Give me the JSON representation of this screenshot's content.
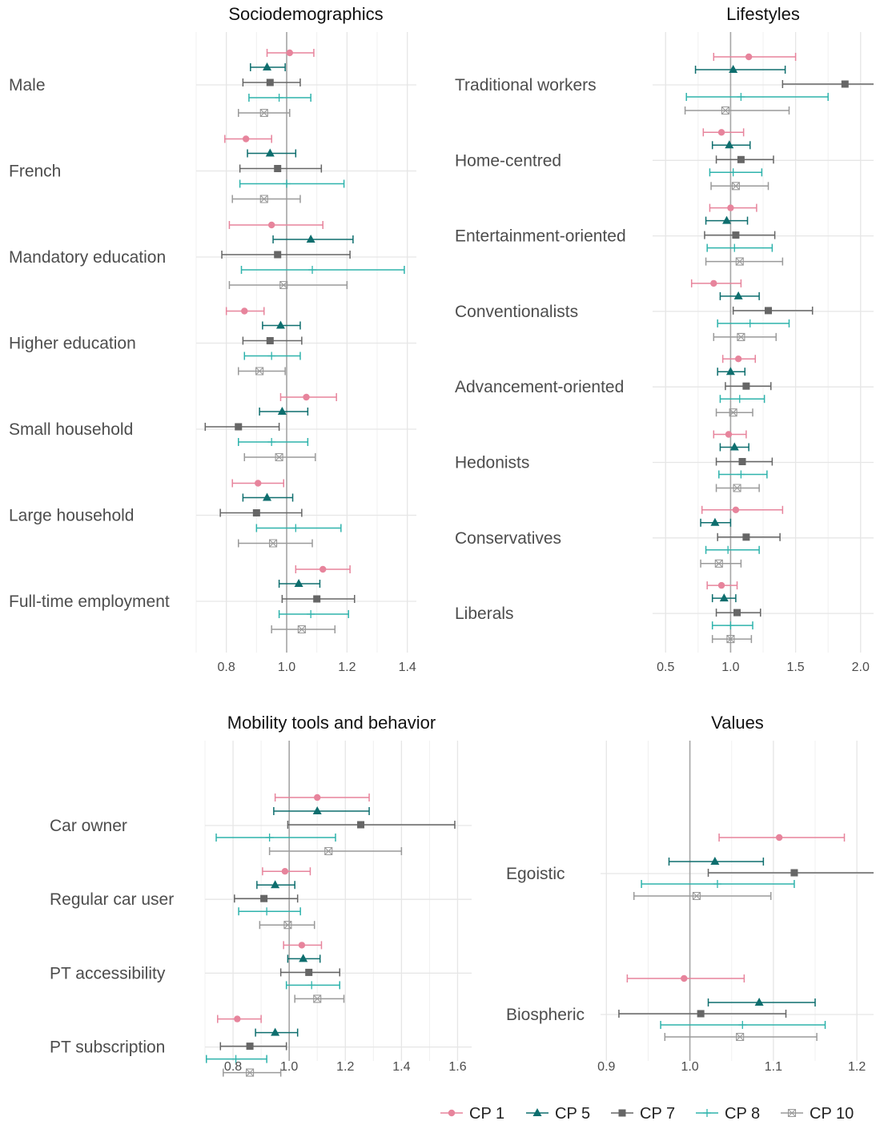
{
  "legend": [
    {
      "name": "CP 1",
      "color": "#E7849C",
      "marker": "circle"
    },
    {
      "name": "CP 5",
      "color": "#0E6E6E",
      "marker": "triangle"
    },
    {
      "name": "CP 7",
      "color": "#666666",
      "marker": "square"
    },
    {
      "name": "CP 8",
      "color": "#2EB3AC",
      "marker": "plus"
    },
    {
      "name": "CP 10",
      "color": "#9A9A9A",
      "marker": "square-x"
    }
  ],
  "chart_data": [
    {
      "type": "forest",
      "title": "Sociodemographics",
      "xlim": [
        0.7,
        1.43
      ],
      "xticks": [
        0.8,
        1.0,
        1.2,
        1.4
      ],
      "xtick_labels": [
        "0.8",
        "1.0",
        "1.2",
        "1.4"
      ],
      "minor_xticks": [
        0.7,
        0.9,
        1.1,
        1.3
      ],
      "ref_line": 1.0,
      "grid": true,
      "categories": [
        "Male",
        "French",
        "Mandatory education",
        "Higher education",
        "Small household",
        "Large household",
        "Full-time employment"
      ],
      "series": [
        {
          "name": "CP 1",
          "est": [
            1.01,
            0.865,
            0.95,
            0.86,
            1.065,
            0.905,
            1.12
          ],
          "lo": [
            0.935,
            0.795,
            0.81,
            0.8,
            0.98,
            0.82,
            1.03
          ],
          "hi": [
            1.09,
            0.95,
            1.12,
            0.925,
            1.165,
            0.99,
            1.21
          ]
        },
        {
          "name": "CP 5",
          "est": [
            0.935,
            0.945,
            1.08,
            0.98,
            0.985,
            0.935,
            1.04
          ],
          "lo": [
            0.88,
            0.87,
            0.955,
            0.92,
            0.91,
            0.855,
            0.975
          ],
          "hi": [
            0.995,
            1.03,
            1.22,
            1.045,
            1.07,
            1.02,
            1.11
          ]
        },
        {
          "name": "CP 7",
          "est": [
            0.945,
            0.97,
            0.97,
            0.945,
            0.84,
            0.9,
            1.1
          ],
          "lo": [
            0.855,
            0.845,
            0.785,
            0.855,
            0.73,
            0.78,
            0.985
          ],
          "hi": [
            1.045,
            1.115,
            1.21,
            1.05,
            0.975,
            1.05,
            1.225
          ]
        },
        {
          "name": "CP 8",
          "est": [
            0.975,
            1.0,
            1.085,
            0.95,
            0.95,
            1.03,
            1.08
          ],
          "lo": [
            0.875,
            0.845,
            0.85,
            0.86,
            0.84,
            0.9,
            0.975
          ],
          "hi": [
            1.08,
            1.19,
            1.39,
            1.045,
            1.07,
            1.18,
            1.205
          ]
        },
        {
          "name": "CP 10",
          "est": [
            0.925,
            0.925,
            0.99,
            0.91,
            0.975,
            0.955,
            1.05
          ],
          "lo": [
            0.84,
            0.82,
            0.81,
            0.84,
            0.86,
            0.84,
            0.95
          ],
          "hi": [
            1.01,
            1.045,
            1.2,
            0.995,
            1.095,
            1.085,
            1.16
          ]
        }
      ]
    },
    {
      "type": "forest",
      "title": "Lifestyles",
      "xlim": [
        0.4,
        2.1
      ],
      "xticks": [
        0.5,
        1.0,
        1.5,
        2.0
      ],
      "xtick_labels": [
        "0.5",
        "1.0",
        "1.5",
        "2.0"
      ],
      "minor_xticks": [
        0.75,
        1.25,
        1.75
      ],
      "ref_line": 1.0,
      "grid": true,
      "categories": [
        "Traditional workers",
        "Home-centred",
        "Entertainment-oriented",
        "Conventionalists",
        "Advancement-oriented",
        "Hedonists",
        "Conservatives",
        "Liberals"
      ],
      "series": [
        {
          "name": "CP 1",
          "est": [
            1.14,
            0.93,
            1.0,
            0.87,
            1.06,
            0.985,
            1.04,
            0.93
          ],
          "lo": [
            0.87,
            0.79,
            0.84,
            0.7,
            0.94,
            0.87,
            0.78,
            0.82
          ],
          "hi": [
            1.5,
            1.1,
            1.2,
            1.08,
            1.19,
            1.12,
            1.4,
            1.05
          ]
        },
        {
          "name": "CP 5",
          "est": [
            1.02,
            0.99,
            0.97,
            1.06,
            1.0,
            1.03,
            0.88,
            0.95
          ],
          "lo": [
            0.73,
            0.86,
            0.81,
            0.92,
            0.9,
            0.92,
            0.77,
            0.86
          ],
          "hi": [
            1.42,
            1.15,
            1.13,
            1.22,
            1.11,
            1.14,
            1.0,
            1.04
          ]
        },
        {
          "name": "CP 7",
          "est": [
            1.88,
            1.08,
            1.04,
            1.29,
            1.12,
            1.09,
            1.12,
            1.05
          ],
          "lo": [
            1.4,
            0.89,
            0.8,
            1.02,
            0.96,
            0.89,
            0.9,
            0.89
          ],
          "hi": [
            2.5,
            1.33,
            1.34,
            1.63,
            1.31,
            1.32,
            1.38,
            1.23
          ]
        },
        {
          "name": "CP 8",
          "est": [
            1.08,
            1.02,
            1.03,
            1.15,
            1.07,
            1.08,
            0.98,
            1.0
          ],
          "lo": [
            0.66,
            0.84,
            0.82,
            0.9,
            0.92,
            0.91,
            0.81,
            0.86
          ],
          "hi": [
            1.75,
            1.24,
            1.32,
            1.45,
            1.26,
            1.28,
            1.22,
            1.17
          ]
        },
        {
          "name": "CP 10",
          "est": [
            0.96,
            1.04,
            1.07,
            1.08,
            1.02,
            1.05,
            0.91,
            1.0
          ],
          "lo": [
            0.65,
            0.85,
            0.81,
            0.87,
            0.89,
            0.89,
            0.77,
            0.86
          ],
          "hi": [
            1.45,
            1.29,
            1.4,
            1.35,
            1.17,
            1.22,
            1.08,
            1.16
          ]
        }
      ]
    },
    {
      "type": "forest",
      "title": "Mobility tools and behavior",
      "xlim": [
        0.7,
        1.65
      ],
      "xticks": [
        0.8,
        1.0,
        1.2,
        1.4,
        1.6
      ],
      "xtick_labels": [
        "0.8",
        "1.0",
        "1.2",
        "1.4",
        "1.6"
      ],
      "minor_xticks": [
        0.7,
        0.9,
        1.1,
        1.3,
        1.5
      ],
      "ref_line": 1.0,
      "grid": true,
      "categories": [
        "Car owner",
        "Regular car user",
        "PT accessibility",
        "PT subscription"
      ],
      "series": [
        {
          "name": "CP 1",
          "est": [
            1.1,
            0.985,
            1.045,
            0.815
          ],
          "lo": [
            0.95,
            0.905,
            0.98,
            0.745
          ],
          "hi": [
            1.285,
            1.075,
            1.115,
            0.9
          ]
        },
        {
          "name": "CP 5",
          "est": [
            1.1,
            0.95,
            1.05,
            0.95
          ],
          "lo": [
            0.945,
            0.885,
            0.995,
            0.88
          ],
          "hi": [
            1.285,
            1.02,
            1.11,
            1.03
          ]
        },
        {
          "name": "CP 7",
          "est": [
            1.255,
            0.91,
            1.07,
            0.86
          ],
          "lo": [
            0.995,
            0.805,
            0.97,
            0.755
          ],
          "hi": [
            1.59,
            1.03,
            1.18,
            0.99
          ]
        },
        {
          "name": "CP 8",
          "est": [
            0.93,
            0.92,
            1.08,
            0.81
          ],
          "lo": [
            0.74,
            0.82,
            0.99,
            0.705
          ],
          "hi": [
            1.165,
            1.04,
            1.18,
            0.92
          ]
        },
        {
          "name": "CP 10",
          "est": [
            1.14,
            0.995,
            1.1,
            0.86
          ],
          "lo": [
            0.93,
            0.895,
            1.02,
            0.765
          ],
          "hi": [
            1.4,
            1.09,
            1.195,
            0.97
          ]
        }
      ]
    },
    {
      "type": "forest",
      "title": "Values",
      "xlim": [
        0.893,
        1.22
      ],
      "xticks": [
        0.9,
        1.0,
        1.1,
        1.2
      ],
      "xtick_labels": [
        "0.9",
        "1.0",
        "1.1",
        "1.2"
      ],
      "minor_xticks": [
        0.95,
        1.05,
        1.15
      ],
      "ref_line": 1.0,
      "grid": true,
      "categories": [
        "Egoistic",
        "Biospheric"
      ],
      "series": [
        {
          "name": "CP 1",
          "est": [
            1.107,
            0.993
          ],
          "lo": [
            1.035,
            0.925
          ],
          "hi": [
            1.185,
            1.065
          ]
        },
        {
          "name": "CP 5",
          "est": [
            1.03,
            1.083
          ],
          "lo": [
            0.975,
            1.022
          ],
          "hi": [
            1.088,
            1.15
          ]
        },
        {
          "name": "CP 7",
          "est": [
            1.125,
            1.013
          ],
          "lo": [
            1.022,
            0.915
          ],
          "hi": [
            1.3,
            1.115
          ]
        },
        {
          "name": "CP 8",
          "est": [
            1.033,
            1.063
          ],
          "lo": [
            0.942,
            0.965
          ],
          "hi": [
            1.125,
            1.162
          ]
        },
        {
          "name": "CP 10",
          "est": [
            1.008,
            1.06
          ],
          "lo": [
            0.933,
            0.97
          ],
          "hi": [
            1.097,
            1.152
          ]
        }
      ]
    }
  ]
}
